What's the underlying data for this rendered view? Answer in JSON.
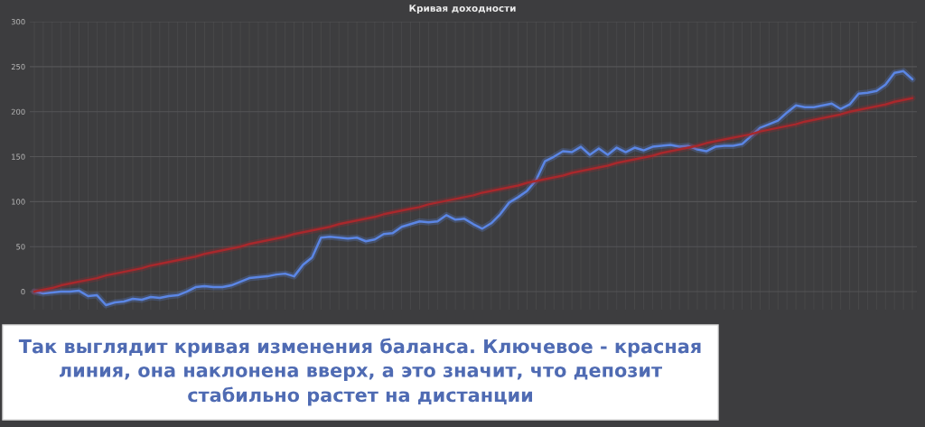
{
  "chart_data": {
    "type": "line",
    "title": "Кривая доходности",
    "categories": [
      null,
      null,
      null,
      null,
      null,
      null,
      null,
      null,
      null,
      null,
      null,
      null,
      null,
      null,
      null,
      null,
      null,
      null,
      null,
      null,
      null,
      null,
      null,
      null,
      null,
      null,
      null,
      null,
      null,
      null,
      null,
      null,
      null,
      null,
      null,
      null,
      null,
      null,
      null,
      null,
      null,
      null,
      null,
      null,
      null,
      null,
      null,
      null,
      null,
      null,
      null,
      null,
      null,
      null,
      null,
      null,
      null,
      null,
      null,
      null,
      null,
      null,
      null,
      null,
      null,
      null,
      null,
      null,
      null,
      null,
      null,
      null,
      null,
      null,
      null,
      null,
      null,
      null,
      null,
      null,
      null,
      null,
      null,
      null,
      null,
      null,
      null,
      null,
      null,
      null,
      null,
      null,
      null,
      null,
      null,
      null,
      null,
      null,
      null
    ],
    "series": [
      {
        "color": "#5b86e5",
        "values": [
          0,
          -2,
          -1,
          0,
          0,
          1,
          -5,
          -4,
          -15,
          -12,
          -11,
          -8,
          -9,
          -6,
          -7,
          -5,
          -4,
          0,
          5,
          6,
          5,
          5,
          7,
          11,
          15,
          16,
          17,
          19,
          20,
          17,
          30,
          38,
          60,
          61,
          60,
          59,
          60,
          56,
          58,
          64,
          65,
          72,
          75,
          78,
          77,
          78,
          85,
          80,
          81,
          75,
          70,
          76,
          86,
          99,
          105,
          112,
          124,
          145,
          150,
          156,
          155,
          161,
          152,
          159,
          152,
          160,
          155,
          160,
          157,
          161,
          162,
          163,
          161,
          162,
          158,
          156,
          161,
          162,
          162,
          164,
          173,
          182,
          186,
          190,
          199,
          207,
          205,
          205,
          207,
          209,
          203,
          208,
          220,
          221,
          223,
          230,
          243,
          245,
          236
        ]
      },
      {
        "color": "#a8282c",
        "values": [
          0,
          2,
          4,
          7,
          9,
          11,
          13,
          15,
          18,
          20,
          22,
          24,
          26,
          29,
          31,
          33,
          35,
          37,
          39,
          42,
          44,
          46,
          48,
          50,
          53,
          55,
          57,
          59,
          61,
          64,
          66,
          68,
          70,
          72,
          75,
          77,
          79,
          81,
          83,
          86,
          88,
          90,
          92,
          94,
          97,
          99,
          101,
          103,
          105,
          107,
          110,
          112,
          114,
          116,
          118,
          121,
          123,
          125,
          127,
          129,
          132,
          134,
          136,
          138,
          140,
          143,
          145,
          147,
          149,
          151,
          154,
          156,
          158,
          160,
          162,
          165,
          167,
          169,
          171,
          173,
          175,
          178,
          180,
          182,
          184,
          186,
          189,
          191,
          193,
          195,
          197,
          200,
          202,
          204,
          206,
          208,
          211,
          213,
          215
        ]
      }
    ],
    "ylim": [
      -20,
      300
    ],
    "yticks": [
      0,
      50,
      100,
      150,
      200,
      250,
      300
    ],
    "grid": true,
    "annotations": [
      "Так выглядит кривая изменения баланса. Ключевое - красная линия, она наклонена вверх, а это значит, что депозит стабильно растет на дистанции"
    ]
  }
}
